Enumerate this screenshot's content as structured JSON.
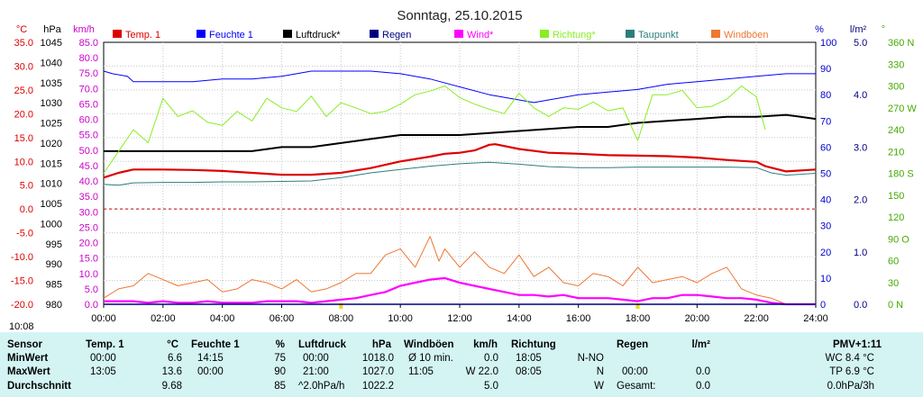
{
  "chart_data": {
    "type": "line",
    "title": "Sonntag, 25.10.2015",
    "x_ticks": [
      "00:00",
      "02:00",
      "04:00",
      "06:00",
      "08:00",
      "10:00",
      "12:00",
      "14:00",
      "16:00",
      "18:00",
      "20:00",
      "22:00",
      "24:00"
    ],
    "current_time": "10:08",
    "axes": {
      "temp": {
        "unit": "°C",
        "color": "#dd0000",
        "range": [
          -20,
          35
        ],
        "ticks": [
          "35.0",
          "30.0",
          "25.0",
          "20.0",
          "15.0",
          "10.0",
          "5.0",
          "0.0",
          "-5.0",
          "-10.0",
          "-15.0",
          "-20.0"
        ]
      },
      "press": {
        "unit": "hPa",
        "color": "#000000",
        "range": [
          980,
          1045
        ],
        "ticks": [
          "1045",
          "1040",
          "1035",
          "1030",
          "1025",
          "1020",
          "1015",
          "1010",
          "1005",
          "1000",
          "995",
          "990",
          "985",
          "980"
        ]
      },
      "wind": {
        "unit": "km/h",
        "color": "#cc00cc",
        "range": [
          0,
          85
        ],
        "ticks": [
          "85.0",
          "80.0",
          "75.0",
          "70.0",
          "65.0",
          "60.0",
          "55.0",
          "50.0",
          "45.0",
          "40.0",
          "35.0",
          "30.0",
          "25.0",
          "20.0",
          "15.0",
          "10.0",
          "5.0",
          "0.0"
        ]
      },
      "hum": {
        "unit": "%",
        "color": "#0000cc",
        "range": [
          0,
          100
        ],
        "ticks": [
          "100",
          "90",
          "80",
          "70",
          "60",
          "50",
          "40",
          "30",
          "20",
          "10",
          "0"
        ]
      },
      "rain": {
        "unit": "l/m²",
        "color": "#000080",
        "range": [
          0,
          5
        ],
        "ticks": [
          "5.0",
          "4.0",
          "3.0",
          "2.0",
          "1.0",
          "0.0"
        ]
      },
      "dir": {
        "unit": "°",
        "color": "#44aa00",
        "range": [
          0,
          360
        ],
        "ticks": [
          "360 N",
          "330",
          "300",
          "270 W",
          "240",
          "210",
          "180 S",
          "150",
          "120",
          "90 O",
          "60",
          "30",
          "0 N"
        ]
      }
    },
    "legend": [
      {
        "name": "Temp. 1",
        "color": "#dd0000"
      },
      {
        "name": "Feuchte 1",
        "color": "#0000ff"
      },
      {
        "name": "Luftdruck*",
        "color": "#000000"
      },
      {
        "name": "Regen",
        "color": "#000080"
      },
      {
        "name": "Wind*",
        "color": "#ff00ff"
      },
      {
        "name": "Richtung*",
        "color": "#88ee22"
      },
      {
        "name": "Taupunkt",
        "color": "#2e7d7d"
      },
      {
        "name": "Windböen",
        "color": "#ee7733"
      }
    ],
    "series": [
      {
        "name": "Temp. 1",
        "axis": "temp",
        "color": "#dd0000",
        "width": 2.2,
        "x": [
          0,
          0.5,
          1,
          2,
          3,
          4,
          5,
          6,
          7,
          8,
          9,
          10,
          11,
          11.5,
          12,
          12.5,
          13,
          13.2,
          14,
          15,
          16,
          17,
          18,
          19,
          20,
          21,
          22,
          22.3,
          23,
          24
        ],
        "y": [
          6.6,
          7.6,
          8.3,
          8.3,
          8.2,
          8.0,
          7.6,
          7.2,
          7.2,
          7.6,
          8.6,
          10.0,
          11.0,
          11.6,
          11.8,
          12.3,
          13.5,
          13.6,
          12.6,
          11.8,
          11.6,
          11.3,
          11.2,
          11.1,
          10.8,
          10.3,
          9.9,
          9.0,
          7.9,
          8.3
        ]
      },
      {
        "name": "Taupunkt",
        "axis": "temp",
        "color": "#2e7d7d",
        "width": 1,
        "x": [
          0,
          0.5,
          1,
          2,
          3,
          4,
          5,
          6,
          7,
          8,
          9,
          10,
          11,
          12,
          13,
          14,
          15,
          16,
          17,
          18,
          19,
          20,
          21,
          22,
          22.5,
          23,
          24
        ],
        "y": [
          5.2,
          5.0,
          5.5,
          5.6,
          5.6,
          5.7,
          5.7,
          5.8,
          5.9,
          6.6,
          7.6,
          8.3,
          9.0,
          9.5,
          9.8,
          9.4,
          8.9,
          8.7,
          8.7,
          8.8,
          8.8,
          8.8,
          8.8,
          8.7,
          7.6,
          7.1,
          7.5
        ]
      },
      {
        "name": "Feuchte 1",
        "axis": "hum",
        "color": "#0000ff",
        "width": 1,
        "x": [
          0,
          0.3,
          0.8,
          1,
          2,
          3,
          4,
          5,
          6,
          7,
          8,
          9,
          10,
          11,
          12,
          13,
          13.5,
          14,
          14.5,
          15,
          16,
          17,
          18,
          19,
          20,
          21,
          22,
          23,
          24
        ],
        "y": [
          89,
          88,
          87,
          85,
          85,
          85,
          86,
          86,
          87,
          89,
          89,
          89,
          88,
          86,
          83,
          80,
          79,
          78,
          77,
          78,
          80,
          81,
          82,
          84,
          85,
          86,
          87,
          88,
          88
        ]
      },
      {
        "name": "Luftdruck*",
        "axis": "press",
        "color": "#000000",
        "width": 2,
        "x": [
          0,
          1,
          2,
          3,
          4,
          5,
          6,
          7,
          8,
          9,
          10,
          11,
          12,
          13,
          14,
          15,
          16,
          17,
          18,
          19,
          20,
          21,
          22,
          23,
          23.5,
          24
        ],
        "y": [
          1018,
          1018,
          1018,
          1018,
          1018,
          1018,
          1019,
          1019,
          1020,
          1021,
          1022,
          1022,
          1022,
          1022.5,
          1023,
          1023.5,
          1024,
          1024,
          1025,
          1025.5,
          1026,
          1026.5,
          1026.5,
          1027,
          1026.5,
          1026
        ]
      },
      {
        "name": "Richtung*",
        "axis": "dir",
        "color": "#88ee22",
        "width": 1,
        "x": [
          0,
          0.5,
          1,
          1.5,
          2,
          2.5,
          3,
          3.5,
          4,
          4.5,
          5,
          5.5,
          6,
          6.5,
          7,
          7.5,
          8,
          8.5,
          9,
          9.5,
          10,
          10.5,
          11,
          11.5,
          12,
          12.5,
          13,
          13.5,
          14,
          14.5,
          15,
          15.5,
          16,
          16.5,
          17,
          17.5,
          18,
          18.5,
          19,
          19.5,
          20,
          20.5,
          21,
          21.5,
          22,
          22.3
        ],
        "y": [
          180,
          210,
          240,
          222,
          283,
          258,
          266,
          250,
          246,
          265,
          252,
          283,
          270,
          265,
          286,
          258,
          277,
          270,
          262,
          265,
          275,
          288,
          293,
          300,
          284,
          275,
          268,
          262,
          290,
          270,
          258,
          270,
          268,
          278,
          266,
          270,
          225,
          288,
          288,
          294,
          270,
          272,
          282,
          300,
          285,
          240
        ]
      },
      {
        "name": "Windböen",
        "axis": "wind",
        "color": "#ee7733",
        "width": 1,
        "x": [
          0,
          0.5,
          1,
          1.5,
          2,
          2.5,
          3,
          3.5,
          4,
          4.5,
          5,
          5.5,
          6,
          6.5,
          7,
          7.5,
          8,
          8.5,
          9,
          9.5,
          10,
          10.5,
          11,
          11.3,
          11.5,
          12,
          12.5,
          13,
          13.5,
          14,
          14.5,
          15,
          15.5,
          16,
          16.5,
          17,
          17.5,
          18,
          18.5,
          19,
          19.5,
          20,
          20.5,
          21,
          21.5,
          22,
          22.5,
          23,
          24
        ],
        "y": [
          2,
          5,
          6,
          10,
          8,
          6,
          7,
          8,
          4,
          5,
          8,
          7,
          5,
          8,
          4,
          5,
          7,
          10,
          10,
          16,
          18,
          12,
          22,
          14,
          18,
          12,
          17,
          12,
          10,
          16,
          9,
          12,
          7,
          6,
          10,
          9,
          6,
          12,
          7,
          8,
          9,
          7,
          10,
          12,
          5,
          3,
          2,
          0,
          0
        ]
      },
      {
        "name": "Wind*",
        "axis": "wind",
        "color": "#ff00ff",
        "width": 2.2,
        "x": [
          0,
          0.5,
          1,
          1.5,
          2,
          2.5,
          3,
          3.5,
          4,
          4.5,
          5,
          5.5,
          6,
          6.5,
          7,
          7.5,
          8,
          8.5,
          9,
          9.5,
          10,
          10.5,
          11,
          11.5,
          12,
          12.5,
          13,
          13.5,
          14,
          14.5,
          15,
          15.5,
          16,
          16.5,
          17,
          17.5,
          18,
          18.5,
          19,
          19.5,
          20,
          20.5,
          21,
          21.5,
          22,
          22.5,
          23,
          24
        ],
        "y": [
          1,
          1,
          1,
          0.5,
          1,
          0.5,
          0.5,
          1,
          0.5,
          0.5,
          0.5,
          1,
          1,
          1,
          0.5,
          1,
          1.5,
          2,
          3,
          4,
          6,
          7,
          8,
          8.5,
          7,
          6,
          5,
          4,
          3,
          3,
          2.5,
          3,
          2,
          2,
          2,
          1.5,
          1,
          2,
          2,
          3,
          3,
          2.5,
          2,
          2,
          1.5,
          0.5,
          0,
          0
        ]
      },
      {
        "name": "Regen",
        "axis": "rain",
        "color": "#000080",
        "width": 1.5,
        "x": [
          0,
          24
        ],
        "y": [
          0,
          0
        ]
      }
    ]
  },
  "stats": {
    "headers": {
      "sensor": "Sensor",
      "temp": "Temp. 1",
      "temp_unit": "°C",
      "hum": "Feuchte 1",
      "hum_unit": "%",
      "press": "Luftdruck",
      "press_unit": "hPa",
      "gust": "Windböen",
      "gust_unit": "km/h",
      "dir": "Richtung",
      "rain": "Regen",
      "rain_unit": "l/m²",
      "pmv": "PMV+1:11"
    },
    "rows": [
      {
        "label": "MinWert",
        "temp_time": "00:00",
        "temp_val": "6.6",
        "hum_time": "14:15",
        "hum_val": "75",
        "press_time": "00:00",
        "press_val": "1018.0",
        "gust_time": "Ø 10 min.",
        "gust_val": "0.0",
        "dir_time": "18:05",
        "dir_val": "N-NO",
        "rain_time": "",
        "rain_val": "",
        "pmv": "WC 8.4 °C"
      },
      {
        "label": "MaxWert",
        "temp_time": "13:05",
        "temp_val": "13.6",
        "hum_time": "00:00",
        "hum_val": "90",
        "press_time": "21:00",
        "press_val": "1027.0",
        "gust_time": "11:05",
        "gust_val": "W 22.0",
        "dir_time": "08:05",
        "dir_val": "N",
        "rain_time": "00:00",
        "rain_val": "0.0",
        "pmv": "TP 6.9 °C"
      },
      {
        "label": "Durchschnitt",
        "temp_time": "",
        "temp_val": "9.68",
        "hum_time": "",
        "hum_val": "85",
        "press_time": "^2.0hPa/h",
        "press_val": "1022.2",
        "gust_time": "",
        "gust_val": "5.0",
        "dir_time": "",
        "dir_val": "W",
        "rain_time": "Gesamt:",
        "rain_val": "0.0",
        "pmv": "0.0hPa/3h"
      }
    ]
  }
}
